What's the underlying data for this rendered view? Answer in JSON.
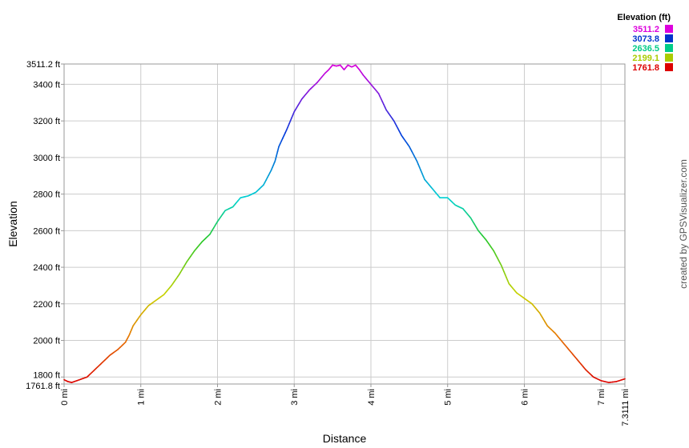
{
  "chart_data": {
    "type": "line",
    "xlabel": "Distance",
    "ylabel": "Elevation",
    "xlim": [
      0,
      7.3111
    ],
    "ylim": [
      1761.8,
      3511.2
    ],
    "x_ticks": [
      {
        "v": 0,
        "label": "0 mi"
      },
      {
        "v": 1,
        "label": "1 mi"
      },
      {
        "v": 2,
        "label": "2 mi"
      },
      {
        "v": 3,
        "label": "3 mi"
      },
      {
        "v": 4,
        "label": "4 mi"
      },
      {
        "v": 5,
        "label": "5 mi"
      },
      {
        "v": 6,
        "label": "6 mi"
      },
      {
        "v": 7,
        "label": "7 mi"
      },
      {
        "v": 7.3111,
        "label": "7.3111 mi"
      }
    ],
    "y_ticks": [
      {
        "v": 1761.8,
        "label": "1761.8 ft"
      },
      {
        "v": 1800,
        "label": "1800 ft"
      },
      {
        "v": 2000,
        "label": "2000 ft"
      },
      {
        "v": 2200,
        "label": "2200 ft"
      },
      {
        "v": 2400,
        "label": "2400 ft"
      },
      {
        "v": 2600,
        "label": "2600 ft"
      },
      {
        "v": 2800,
        "label": "2800 ft"
      },
      {
        "v": 3000,
        "label": "3000 ft"
      },
      {
        "v": 3200,
        "label": "3200 ft"
      },
      {
        "v": 3400,
        "label": "3400 ft"
      },
      {
        "v": 3511.2,
        "label": "3511.2 ft"
      }
    ],
    "grid": true,
    "legend": {
      "title": "Elevation (ft)",
      "placement": "top-right",
      "entries": [
        {
          "label": "3511.2",
          "color": "#dd00dd"
        },
        {
          "label": "3073.8",
          "color": "#0033cc"
        },
        {
          "label": "2636.5",
          "color": "#00cc88"
        },
        {
          "label": "2199.1",
          "color": "#aacc00"
        },
        {
          "label": "1761.8",
          "color": "#dd0000"
        }
      ]
    },
    "series": [
      {
        "x": [
          0,
          0.05,
          0.1,
          0.2,
          0.3,
          0.4,
          0.5,
          0.6,
          0.7,
          0.8,
          0.85,
          0.9,
          1.0,
          1.1,
          1.2,
          1.3,
          1.4,
          1.5,
          1.6,
          1.7,
          1.8,
          1.9,
          2.0,
          2.1,
          2.2,
          2.3,
          2.4,
          2.5,
          2.6,
          2.7,
          2.75,
          2.8,
          2.9,
          3.0,
          3.1,
          3.2,
          3.3,
          3.4,
          3.45,
          3.5,
          3.55,
          3.6,
          3.65,
          3.7,
          3.75,
          3.8,
          3.85,
          3.9,
          4.0,
          4.1,
          4.2,
          4.3,
          4.4,
          4.5,
          4.6,
          4.7,
          4.8,
          4.9,
          5.0,
          5.1,
          5.2,
          5.3,
          5.4,
          5.5,
          5.6,
          5.7,
          5.8,
          5.9,
          6.0,
          6.1,
          6.2,
          6.3,
          6.4,
          6.5,
          6.6,
          6.7,
          6.8,
          6.9,
          7.0,
          7.1,
          7.2,
          7.3111
        ],
        "y": [
          1785,
          1775,
          1770,
          1785,
          1800,
          1840,
          1880,
          1920,
          1950,
          1990,
          2030,
          2080,
          2140,
          2190,
          2220,
          2250,
          2300,
          2360,
          2430,
          2490,
          2540,
          2580,
          2650,
          2710,
          2730,
          2780,
          2790,
          2810,
          2850,
          2930,
          2980,
          3060,
          3150,
          3250,
          3320,
          3370,
          3410,
          3460,
          3480,
          3505,
          3500,
          3505,
          3480,
          3505,
          3495,
          3505,
          3480,
          3450,
          3400,
          3350,
          3260,
          3200,
          3120,
          3060,
          2980,
          2880,
          2830,
          2780,
          2780,
          2740,
          2720,
          2670,
          2600,
          2550,
          2490,
          2410,
          2310,
          2260,
          2230,
          2200,
          2150,
          2080,
          2040,
          1990,
          1940,
          1890,
          1840,
          1800,
          1780,
          1770,
          1775,
          1790
        ]
      }
    ]
  },
  "credit": "created by GPSVisualizer.com"
}
